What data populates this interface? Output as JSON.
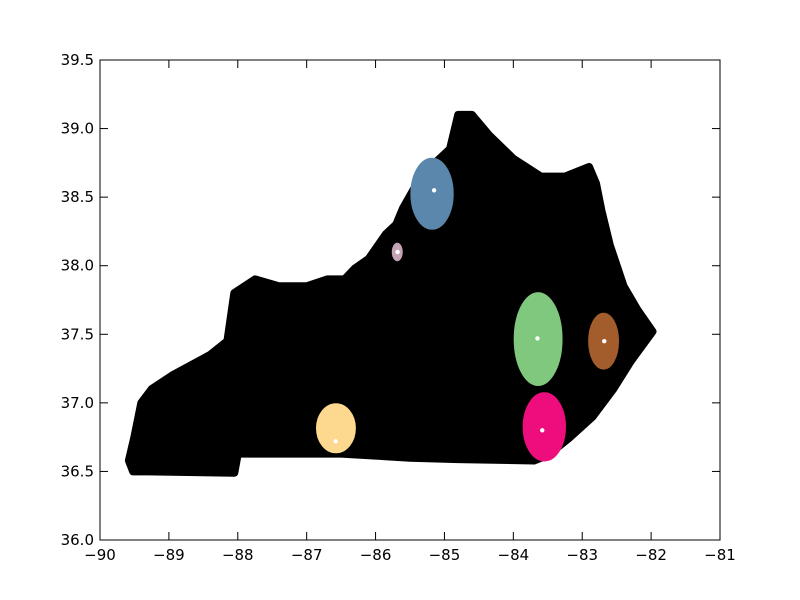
{
  "chart_data": {
    "type": "scatter",
    "title": "",
    "xlabel": "",
    "ylabel": "",
    "xlim": [
      -90,
      -81
    ],
    "ylim": [
      36.0,
      39.5
    ],
    "x_ticks": [
      -90,
      -89,
      -88,
      -87,
      -86,
      -85,
      -84,
      -83,
      -82,
      -81
    ],
    "x_tick_labels": [
      "−90",
      "−89",
      "−88",
      "−87",
      "−86",
      "−85",
      "−84",
      "−83",
      "−82",
      "−81"
    ],
    "y_ticks": [
      36.0,
      36.5,
      37.0,
      37.5,
      38.0,
      38.5,
      39.0,
      39.5
    ],
    "y_tick_labels": [
      "36.0",
      "36.5",
      "37.0",
      "37.5",
      "38.0",
      "38.5",
      "39.0",
      "39.5"
    ],
    "grid": false,
    "legend": "none",
    "background_points_color": "#000000",
    "background_region_outline": [
      [
        -89.58,
        36.58
      ],
      [
        -89.52,
        36.5
      ],
      [
        -89.3,
        36.5
      ],
      [
        -88.05,
        36.49
      ],
      [
        -88.0,
        36.63
      ],
      [
        -86.5,
        36.63
      ],
      [
        -85.5,
        36.6
      ],
      [
        -84.8,
        36.59
      ],
      [
        -83.7,
        36.58
      ],
      [
        -83.5,
        36.62
      ],
      [
        -83.2,
        36.74
      ],
      [
        -82.85,
        36.9
      ],
      [
        -82.55,
        37.1
      ],
      [
        -82.3,
        37.3
      ],
      [
        -81.98,
        37.52
      ],
      [
        -82.2,
        37.68
      ],
      [
        -82.4,
        37.85
      ],
      [
        -82.6,
        38.15
      ],
      [
        -82.72,
        38.4
      ],
      [
        -82.8,
        38.6
      ],
      [
        -82.9,
        38.72
      ],
      [
        -83.25,
        38.65
      ],
      [
        -83.6,
        38.65
      ],
      [
        -84.0,
        38.78
      ],
      [
        -84.35,
        38.95
      ],
      [
        -84.6,
        39.1
      ],
      [
        -84.8,
        39.1
      ],
      [
        -84.92,
        38.85
      ],
      [
        -85.2,
        38.72
      ],
      [
        -85.42,
        38.58
      ],
      [
        -85.6,
        38.42
      ],
      [
        -85.7,
        38.3
      ],
      [
        -85.85,
        38.23
      ],
      [
        -86.1,
        38.05
      ],
      [
        -86.3,
        37.98
      ],
      [
        -86.45,
        37.9
      ],
      [
        -86.7,
        37.9
      ],
      [
        -87.0,
        37.85
      ],
      [
        -87.4,
        37.85
      ],
      [
        -87.75,
        37.9
      ],
      [
        -88.05,
        37.8
      ],
      [
        -88.15,
        37.45
      ],
      [
        -88.4,
        37.35
      ],
      [
        -88.95,
        37.2
      ],
      [
        -89.25,
        37.1
      ],
      [
        -89.4,
        37.0
      ],
      [
        -89.5,
        36.75
      ]
    ],
    "series": [
      {
        "color": "#5b87ad",
        "center": [
          -85.15,
          38.55
        ],
        "x_range": [
          -85.48,
          -84.88
        ],
        "y_range": [
          38.27,
          38.78
        ]
      },
      {
        "color": "#c4a4b4",
        "center": [
          -85.68,
          38.1
        ],
        "x_range": [
          -85.75,
          -85.62
        ],
        "y_range": [
          38.04,
          38.16
        ]
      },
      {
        "color": "#80c87e",
        "center": [
          -83.65,
          37.47
        ],
        "x_range": [
          -83.98,
          -83.3
        ],
        "y_range": [
          37.13,
          37.8
        ]
      },
      {
        "color": "#a35d2c",
        "center": [
          -82.68,
          37.45
        ],
        "x_range": [
          -82.9,
          -82.48
        ],
        "y_range": [
          37.25,
          37.65
        ]
      },
      {
        "color": "#fcd98f",
        "center": [
          -86.58,
          36.72
        ],
        "x_range": [
          -86.85,
          -86.3
        ],
        "y_range": [
          36.64,
          36.99
        ]
      },
      {
        "color": "#ee0d7d",
        "center": [
          -83.58,
          36.8
        ],
        "x_range": [
          -83.85,
          -83.25
        ],
        "y_range": [
          36.58,
          37.07
        ]
      }
    ],
    "centroid_marker_color": "#ffffff"
  }
}
